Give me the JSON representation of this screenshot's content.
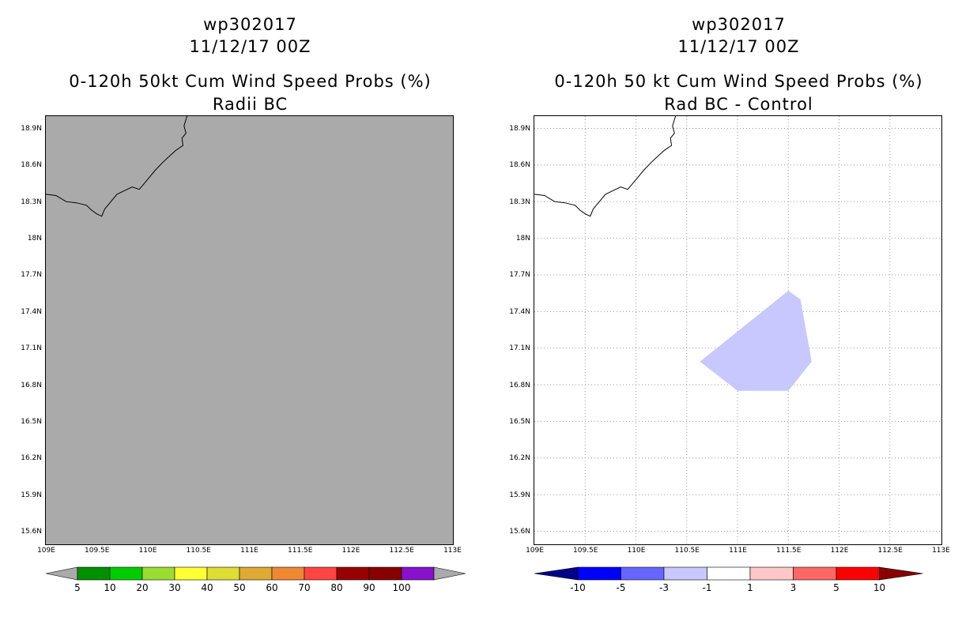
{
  "left_panel": {
    "title_line1": "wp302017",
    "title_line2": "11/12/17 00Z",
    "title_line3": "0-120h 50kt Cum Wind Speed Probs (%)",
    "title_line4": "Radii BC",
    "background_color": "#aaaaaa"
  },
  "right_panel": {
    "title_line1": "wp302017",
    "title_line2": "11/12/17 00Z",
    "title_line3": "0-120h 50 kt Cum Wind Speed Probs (%)",
    "title_line4": "Rad BC - Control",
    "shaded_region_color": "#c8c8ff",
    "gridlines": "dotted"
  },
  "axes": {
    "x_range": [
      109.0,
      113.0
    ],
    "y_range": [
      15.5,
      19.0
    ],
    "y_ticks": [
      {
        "value": 18.9,
        "label": "18.9N"
      },
      {
        "value": 18.6,
        "label": "18.6N"
      },
      {
        "value": 18.3,
        "label": "18.3N"
      },
      {
        "value": 18.0,
        "label": "18N"
      },
      {
        "value": 17.7,
        "label": "17.7N"
      },
      {
        "value": 17.4,
        "label": "17.4N"
      },
      {
        "value": 17.1,
        "label": "17.1N"
      },
      {
        "value": 16.8,
        "label": "16.8N"
      },
      {
        "value": 16.5,
        "label": "16.5N"
      },
      {
        "value": 16.2,
        "label": "16.2N"
      },
      {
        "value": 15.9,
        "label": "15.9N"
      },
      {
        "value": 15.6,
        "label": "15.6N"
      }
    ],
    "x_ticks": [
      {
        "value": 109.0,
        "label": "109E"
      },
      {
        "value": 109.5,
        "label": "109.5E"
      },
      {
        "value": 110.0,
        "label": "110E"
      },
      {
        "value": 110.5,
        "label": "110.5E"
      },
      {
        "value": 111.0,
        "label": "111E"
      },
      {
        "value": 111.5,
        "label": "111.5E"
      },
      {
        "value": 112.0,
        "label": "112E"
      },
      {
        "value": 112.5,
        "label": "112.5E"
      },
      {
        "value": 113.0,
        "label": "113E"
      }
    ]
  },
  "map_features": {
    "coastline": [
      [
        109.0,
        18.36
      ],
      [
        109.1,
        18.35
      ],
      [
        109.2,
        18.3
      ],
      [
        109.3,
        18.29
      ],
      [
        109.4,
        18.27
      ],
      [
        109.45,
        18.23
      ],
      [
        109.5,
        18.2
      ],
      [
        109.55,
        18.18
      ],
      [
        109.58,
        18.24
      ],
      [
        109.62,
        18.28
      ],
      [
        109.7,
        18.36
      ],
      [
        109.75,
        18.38
      ],
      [
        109.85,
        18.42
      ],
      [
        109.92,
        18.4
      ],
      [
        110.0,
        18.48
      ],
      [
        110.08,
        18.56
      ],
      [
        110.15,
        18.62
      ],
      [
        110.2,
        18.66
      ],
      [
        110.28,
        18.72
      ],
      [
        110.35,
        18.76
      ],
      [
        110.34,
        18.82
      ],
      [
        110.38,
        18.86
      ],
      [
        110.36,
        18.92
      ],
      [
        110.39,
        19.0
      ]
    ],
    "shaded_polygon": [
      [
        110.63,
        16.99
      ],
      [
        111.5,
        17.57
      ],
      [
        111.62,
        17.5
      ],
      [
        111.73,
        16.99
      ],
      [
        111.5,
        16.75
      ],
      [
        111.0,
        16.75
      ]
    ]
  },
  "colorbars": {
    "left": {
      "labels": [
        "5",
        "10",
        "20",
        "30",
        "40",
        "50",
        "60",
        "70",
        "80",
        "90",
        "100"
      ],
      "colors": [
        "#009000",
        "#00cc00",
        "#99dd33",
        "#ffff33",
        "#dddd33",
        "#ddaa33",
        "#ee8833",
        "#ff4444",
        "#990000",
        "#880000",
        "#8811cc"
      ],
      "end_color": "#aaaaaa"
    },
    "right": {
      "labels": [
        "-10",
        "-5",
        "-3",
        "-1",
        "1",
        "3",
        "5",
        "10"
      ],
      "colors": [
        "#0000ff",
        "#6666ff",
        "#c8c8ff",
        "#ffffff",
        "#ffc8c8",
        "#ff6666",
        "#ff0000"
      ],
      "low_end_color": "#000088",
      "high_end_color": "#880000"
    }
  }
}
